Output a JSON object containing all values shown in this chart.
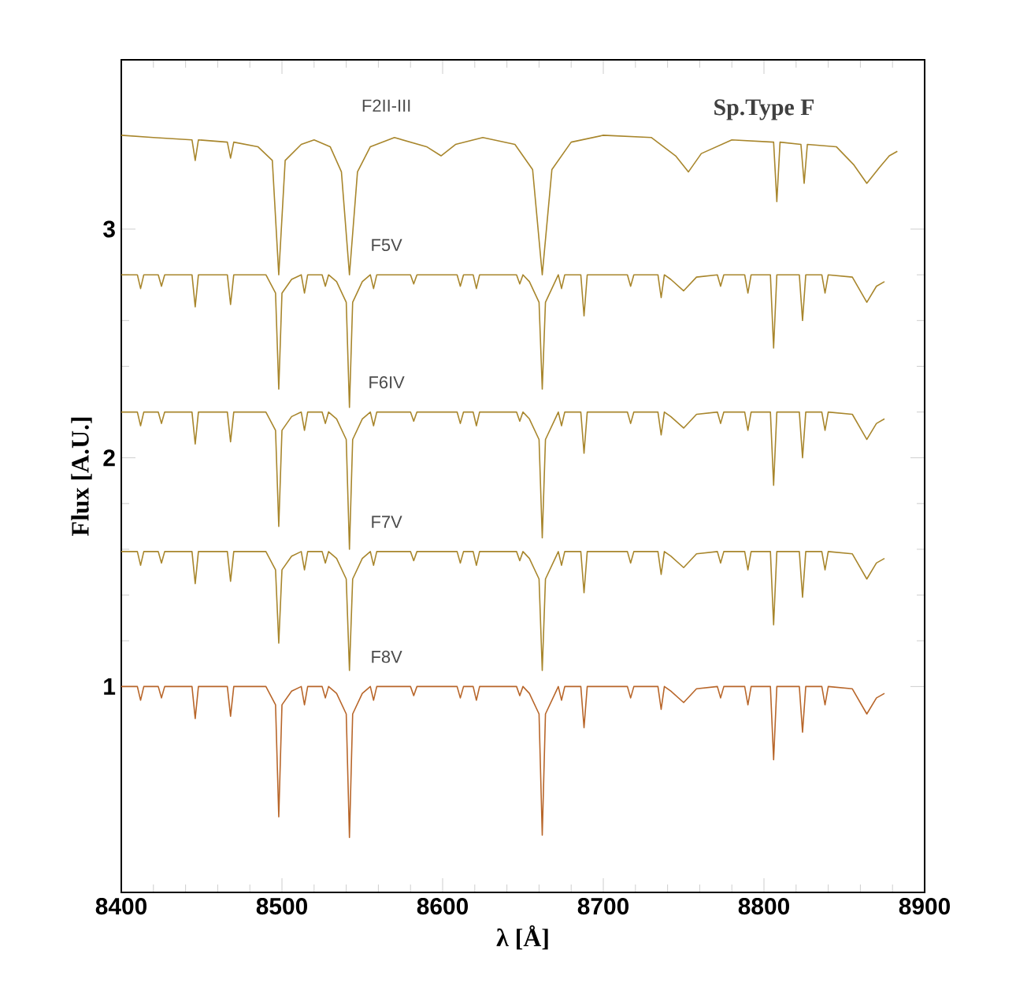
{
  "chart_data": {
    "type": "line",
    "xlabel": "λ [Å]",
    "ylabel": "Flux [A.U.]",
    "annotations": [
      "Sp.Type F"
    ],
    "xlim": [
      8400,
      8900
    ],
    "ylim": [
      0.1,
      3.74
    ],
    "xticks": [
      8400,
      8500,
      8600,
      8700,
      8800,
      8900
    ],
    "yticks": [
      1,
      2,
      3
    ],
    "x": [
      8400,
      8410,
      8412,
      8414,
      8423,
      8425,
      8427,
      8444,
      8446,
      8448,
      8466,
      8468,
      8470,
      8490,
      8496,
      8498,
      8500,
      8506,
      8512,
      8514,
      8516,
      8525,
      8527,
      8529,
      8534,
      8540,
      8542,
      8544,
      8550,
      8555,
      8557,
      8559,
      8580,
      8582,
      8584,
      8609,
      8611,
      8613,
      8619,
      8621,
      8623,
      8646,
      8648,
      8650,
      8654,
      8660,
      8662,
      8664,
      8670,
      8672,
      8674,
      8676,
      8686,
      8688,
      8690,
      8715,
      8717,
      8719,
      8734,
      8736,
      8738,
      8742,
      8750,
      8758,
      8771,
      8773,
      8775,
      8788,
      8790,
      8792,
      8804,
      8806,
      8808,
      8822,
      8824,
      8826,
      8836,
      8838,
      8840,
      8855,
      8864,
      8870,
      8875
    ],
    "series": [
      {
        "name": "F2II-III",
        "color": "#a8862c",
        "x": [
          8400,
          8420,
          8444,
          8446,
          8448,
          8466,
          8468,
          8470,
          8485,
          8494,
          8498,
          8502,
          8512,
          8520,
          8530,
          8537,
          8542,
          8547,
          8555,
          8570,
          8590,
          8599,
          8608,
          8625,
          8645,
          8656,
          8662,
          8668,
          8680,
          8700,
          8730,
          8745,
          8753,
          8761,
          8780,
          8806,
          8808,
          8810,
          8823,
          8825,
          8827,
          8845,
          8856,
          8864,
          8872,
          8878,
          8883
        ],
        "values": [
          3.41,
          3.4,
          3.39,
          3.3,
          3.39,
          3.38,
          3.31,
          3.38,
          3.36,
          3.3,
          2.8,
          3.3,
          3.37,
          3.39,
          3.36,
          3.25,
          2.8,
          3.25,
          3.36,
          3.4,
          3.36,
          3.32,
          3.37,
          3.4,
          3.37,
          3.26,
          2.8,
          3.26,
          3.38,
          3.41,
          3.4,
          3.32,
          3.25,
          3.33,
          3.39,
          3.38,
          3.12,
          3.38,
          3.37,
          3.2,
          3.37,
          3.36,
          3.28,
          3.2,
          3.27,
          3.32,
          3.34
        ]
      },
      {
        "name": "F5V",
        "color": "#a8862c",
        "values": [
          2.8,
          2.8,
          2.74,
          2.8,
          2.8,
          2.75,
          2.8,
          2.8,
          2.66,
          2.8,
          2.8,
          2.67,
          2.8,
          2.8,
          2.72,
          2.3,
          2.72,
          2.78,
          2.8,
          2.72,
          2.8,
          2.8,
          2.75,
          2.8,
          2.77,
          2.68,
          2.22,
          2.68,
          2.77,
          2.8,
          2.74,
          2.8,
          2.8,
          2.76,
          2.8,
          2.8,
          2.75,
          2.8,
          2.8,
          2.74,
          2.8,
          2.8,
          2.76,
          2.8,
          2.77,
          2.68,
          2.3,
          2.68,
          2.77,
          2.8,
          2.74,
          2.8,
          2.8,
          2.62,
          2.8,
          2.8,
          2.75,
          2.8,
          2.8,
          2.7,
          2.8,
          2.78,
          2.73,
          2.79,
          2.8,
          2.75,
          2.8,
          2.8,
          2.72,
          2.8,
          2.8,
          2.48,
          2.8,
          2.8,
          2.6,
          2.8,
          2.8,
          2.72,
          2.8,
          2.79,
          2.68,
          2.75,
          2.77
        ]
      },
      {
        "name": "F6IV",
        "color": "#a8862c",
        "values": [
          2.2,
          2.2,
          2.14,
          2.2,
          2.2,
          2.15,
          2.2,
          2.2,
          2.06,
          2.2,
          2.2,
          2.07,
          2.2,
          2.2,
          2.12,
          1.7,
          2.12,
          2.18,
          2.2,
          2.12,
          2.2,
          2.2,
          2.15,
          2.2,
          2.17,
          2.08,
          1.6,
          2.08,
          2.17,
          2.2,
          2.14,
          2.2,
          2.2,
          2.16,
          2.2,
          2.2,
          2.15,
          2.2,
          2.2,
          2.14,
          2.2,
          2.2,
          2.16,
          2.2,
          2.17,
          2.08,
          1.65,
          2.08,
          2.17,
          2.2,
          2.14,
          2.2,
          2.2,
          2.02,
          2.2,
          2.2,
          2.15,
          2.2,
          2.2,
          2.1,
          2.2,
          2.18,
          2.13,
          2.19,
          2.2,
          2.15,
          2.2,
          2.2,
          2.12,
          2.2,
          2.2,
          1.88,
          2.2,
          2.2,
          2.0,
          2.2,
          2.2,
          2.12,
          2.2,
          2.19,
          2.08,
          2.15,
          2.17
        ]
      },
      {
        "name": "F7V",
        "color": "#a8862c",
        "values": [
          1.59,
          1.59,
          1.53,
          1.59,
          1.59,
          1.54,
          1.59,
          1.59,
          1.45,
          1.59,
          1.59,
          1.46,
          1.59,
          1.59,
          1.51,
          1.19,
          1.51,
          1.57,
          1.59,
          1.51,
          1.59,
          1.59,
          1.54,
          1.59,
          1.56,
          1.47,
          1.07,
          1.47,
          1.56,
          1.59,
          1.53,
          1.59,
          1.59,
          1.55,
          1.59,
          1.59,
          1.54,
          1.59,
          1.59,
          1.53,
          1.59,
          1.59,
          1.55,
          1.59,
          1.56,
          1.47,
          1.07,
          1.47,
          1.56,
          1.59,
          1.53,
          1.59,
          1.59,
          1.41,
          1.59,
          1.59,
          1.54,
          1.59,
          1.59,
          1.49,
          1.59,
          1.57,
          1.52,
          1.58,
          1.59,
          1.54,
          1.59,
          1.59,
          1.51,
          1.59,
          1.59,
          1.27,
          1.59,
          1.59,
          1.39,
          1.59,
          1.59,
          1.51,
          1.59,
          1.58,
          1.47,
          1.54,
          1.56
        ]
      },
      {
        "name": "F8V",
        "color": "#b8662a",
        "values": [
          1.0,
          1.0,
          0.94,
          1.0,
          1.0,
          0.95,
          1.0,
          1.0,
          0.86,
          1.0,
          1.0,
          0.87,
          1.0,
          1.0,
          0.92,
          0.43,
          0.92,
          0.98,
          1.0,
          0.92,
          1.0,
          1.0,
          0.95,
          1.0,
          0.97,
          0.88,
          0.34,
          0.88,
          0.97,
          1.0,
          0.94,
          1.0,
          1.0,
          0.96,
          1.0,
          1.0,
          0.95,
          1.0,
          1.0,
          0.94,
          1.0,
          1.0,
          0.96,
          1.0,
          0.97,
          0.88,
          0.35,
          0.88,
          0.97,
          1.0,
          0.94,
          1.0,
          1.0,
          0.82,
          1.0,
          1.0,
          0.95,
          1.0,
          1.0,
          0.9,
          1.0,
          0.98,
          0.93,
          0.99,
          1.0,
          0.95,
          1.0,
          1.0,
          0.92,
          1.0,
          1.0,
          0.68,
          1.0,
          1.0,
          0.8,
          1.0,
          1.0,
          0.92,
          1.0,
          0.99,
          0.88,
          0.95,
          0.97
        ]
      }
    ]
  }
}
